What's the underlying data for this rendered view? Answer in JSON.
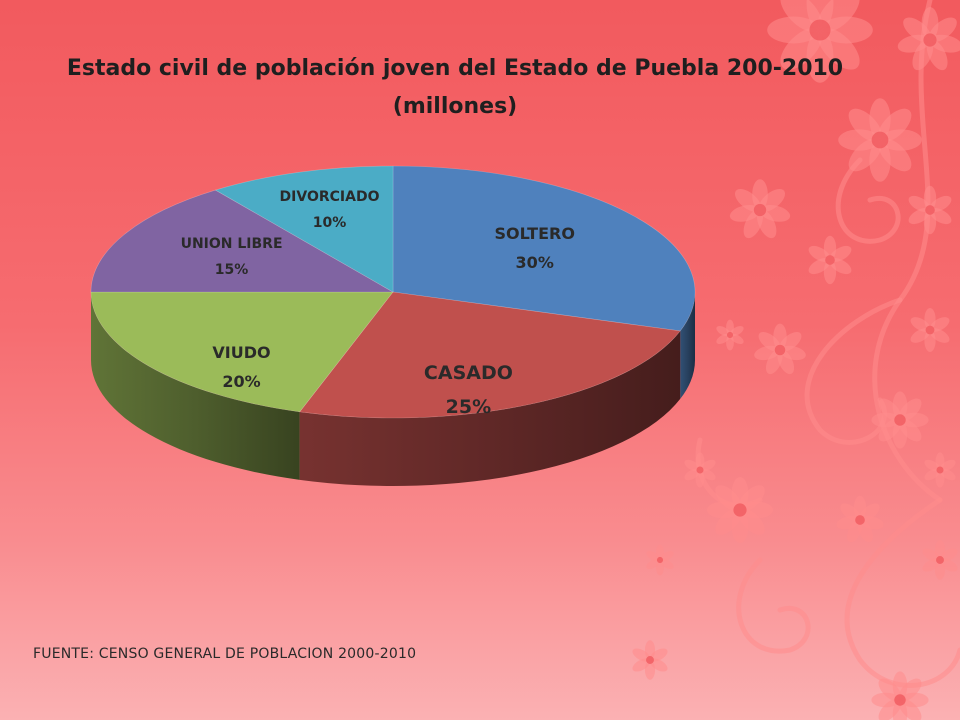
{
  "title_line1": "Estado civil de población joven del Estado de Puebla 200-2010",
  "title_line2": "(millones)",
  "source": "FUENTE: CENSO GENERAL DE  POBLACION 2000-2010",
  "chart_data": {
    "type": "pie",
    "style": "3d",
    "title": "Estado civil de población joven del Estado de Puebla 200-2010 (millones)",
    "legend": "none",
    "slices": [
      {
        "label": "SOLTERO",
        "value": 30,
        "display": "30%",
        "color": "#4f81bd"
      },
      {
        "label": "CASADO",
        "value": 25,
        "display": "25%",
        "color": "#c0504d"
      },
      {
        "label": "VIUDO",
        "value": 20,
        "display": "20%",
        "color": "#9bbb59"
      },
      {
        "label": "UNION LIBRE",
        "value": 15,
        "display": "15%",
        "color": "#8064a2"
      },
      {
        "label": "DIVORCIADO",
        "value": 10,
        "display": "10%",
        "color": "#4bacc6"
      }
    ]
  }
}
